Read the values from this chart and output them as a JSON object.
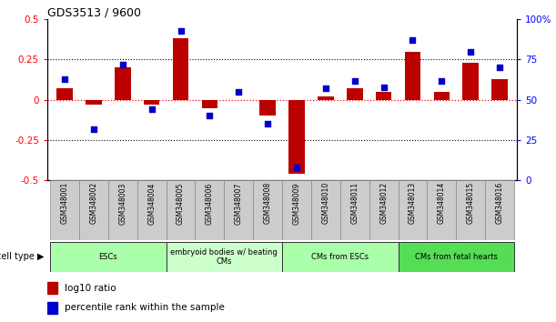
{
  "title": "GDS3513 / 9600",
  "samples": [
    "GSM348001",
    "GSM348002",
    "GSM348003",
    "GSM348004",
    "GSM348005",
    "GSM348006",
    "GSM348007",
    "GSM348008",
    "GSM348009",
    "GSM348010",
    "GSM348011",
    "GSM348012",
    "GSM348013",
    "GSM348014",
    "GSM348015",
    "GSM348016"
  ],
  "log10_ratio": [
    0.07,
    -0.03,
    0.2,
    -0.03,
    0.38,
    -0.05,
    0.0,
    -0.1,
    -0.46,
    0.02,
    0.07,
    0.05,
    0.3,
    0.05,
    0.23,
    0.13
  ],
  "percentile_rank": [
    63,
    32,
    72,
    44,
    93,
    40,
    55,
    35,
    8,
    57,
    62,
    58,
    87,
    62,
    80,
    70
  ],
  "cell_types": [
    {
      "label": "ESCs",
      "start": 0,
      "end": 3,
      "color": "#aaffaa"
    },
    {
      "label": "embryoid bodies w/ beating\nCMs",
      "start": 4,
      "end": 7,
      "color": "#ccffcc"
    },
    {
      "label": "CMs from ESCs",
      "start": 8,
      "end": 11,
      "color": "#aaffaa"
    },
    {
      "label": "CMs from fetal hearts",
      "start": 12,
      "end": 15,
      "color": "#55dd55"
    }
  ],
  "ylim_left": [
    -0.5,
    0.5
  ],
  "ylim_right": [
    0,
    100
  ],
  "yticks_left": [
    -0.5,
    -0.25,
    0.0,
    0.25,
    0.5
  ],
  "ytick_labels_left": [
    "-0.5",
    "-0.25",
    "0",
    "0.25",
    "0.5"
  ],
  "yticks_right": [
    0,
    25,
    50,
    75,
    100
  ],
  "ytick_labels_right": [
    "0",
    "25",
    "50",
    "75",
    "100%"
  ],
  "bar_color": "#bb0000",
  "dot_color": "#0000cc",
  "dot_size": 18,
  "background_color": "#ffffff",
  "legend_log10": "log10 ratio",
  "legend_pct": "percentile rank within the sample",
  "cell_type_label": "cell type"
}
